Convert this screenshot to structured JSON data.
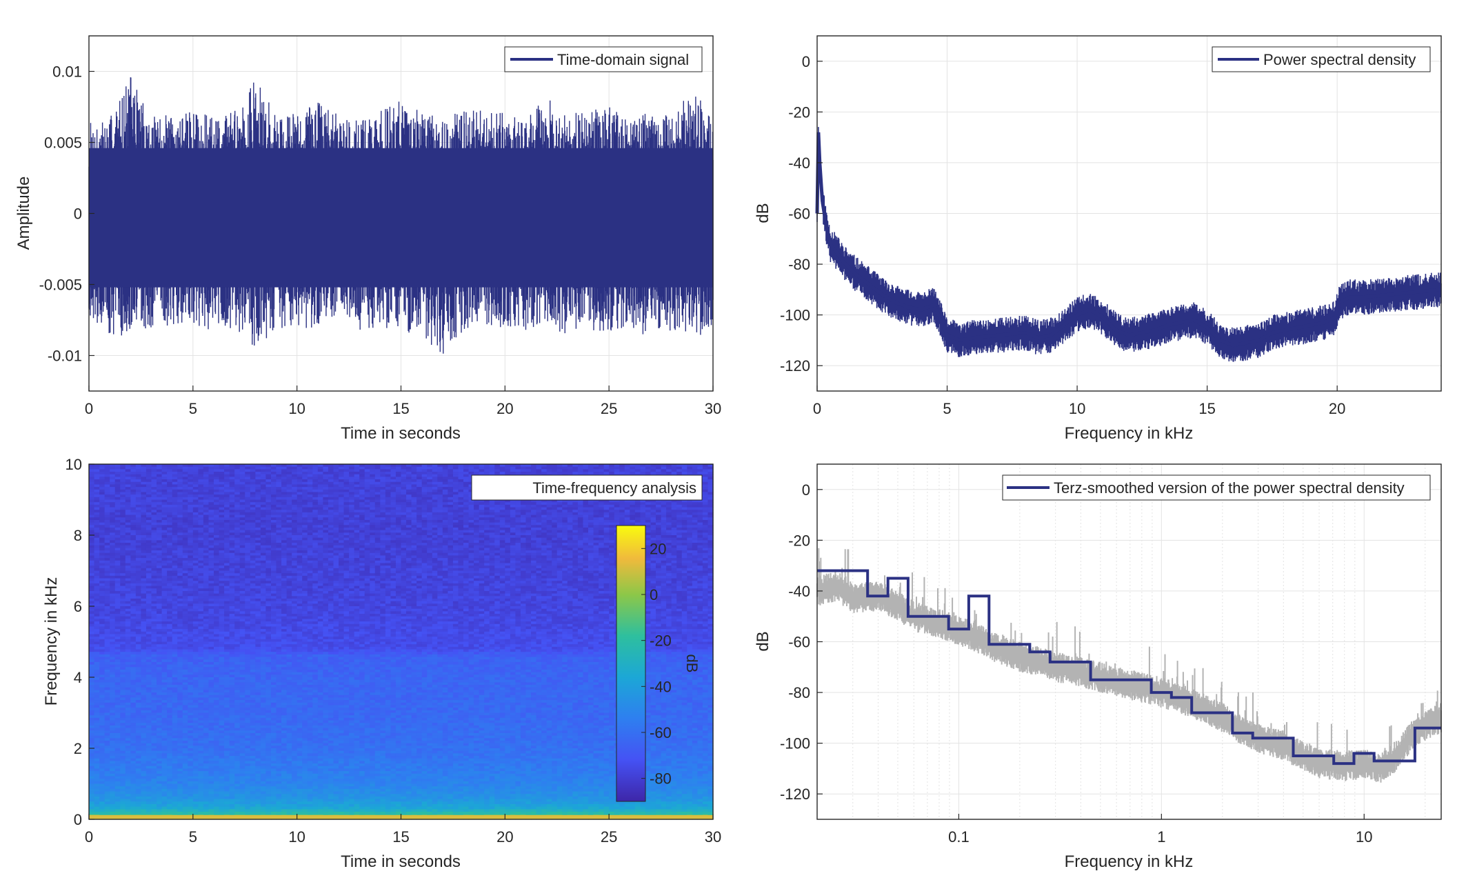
{
  "colors": {
    "series_navy": "#2b3183",
    "raw_gray": "#b3b3b3",
    "grid": "#e3e3e3",
    "axis": "#262626",
    "background": "#ffffff"
  },
  "chart_data": [
    {
      "id": "time-signal",
      "type": "line",
      "legend": [
        "Time-domain signal"
      ],
      "legend_position": "top-right",
      "xlabel": "Time in seconds",
      "ylabel": "Amplitude",
      "xlim": [
        0,
        30
      ],
      "ylim": [
        -0.0125,
        0.0125
      ],
      "grid": true,
      "xticks": [
        0,
        5,
        10,
        15,
        20,
        25,
        30
      ],
      "xtick_labels": [
        "0",
        "5",
        "10",
        "15",
        "20",
        "25",
        "30"
      ],
      "yticks": [
        0.01,
        0.005,
        0,
        -0.005,
        -0.01
      ],
      "ytick_labels": [
        "0.01",
        "0.005",
        "0",
        "-0.005",
        "-0.01"
      ],
      "envelope": {
        "note": "approximate upper/lower extent of the dense noise signal",
        "x": [
          0,
          1,
          2,
          3,
          4,
          5,
          6,
          7,
          8,
          9,
          10,
          11,
          12,
          13,
          14,
          15,
          16,
          17,
          18,
          19,
          20,
          21,
          22,
          23,
          24,
          25,
          26,
          27,
          28,
          29,
          30
        ],
        "upper": [
          0.0065,
          0.0068,
          0.0098,
          0.0068,
          0.007,
          0.0072,
          0.0068,
          0.0075,
          0.0095,
          0.007,
          0.0072,
          0.008,
          0.007,
          0.0068,
          0.0072,
          0.0085,
          0.007,
          0.0068,
          0.0072,
          0.0078,
          0.007,
          0.0068,
          0.0082,
          0.007,
          0.0072,
          0.0075,
          0.0068,
          0.0072,
          0.007,
          0.009,
          0.0065
        ],
        "lower": [
          -0.0072,
          -0.0085,
          -0.0088,
          -0.0082,
          -0.0078,
          -0.008,
          -0.0085,
          -0.008,
          -0.0095,
          -0.0082,
          -0.008,
          -0.0084,
          -0.008,
          -0.0082,
          -0.008,
          -0.0082,
          -0.0088,
          -0.0104,
          -0.0082,
          -0.008,
          -0.0084,
          -0.0082,
          -0.008,
          -0.0086,
          -0.0082,
          -0.0084,
          -0.008,
          -0.0088,
          -0.0082,
          -0.0084,
          -0.0092
        ]
      }
    },
    {
      "id": "psd",
      "type": "line",
      "legend": [
        "Power spectral density"
      ],
      "legend_position": "top-right",
      "xlabel": "Frequency in kHz",
      "ylabel": "dB",
      "xlim": [
        0,
        24
      ],
      "ylim": [
        -130,
        10
      ],
      "grid": true,
      "xticks": [
        0,
        5,
        10,
        15,
        20
      ],
      "xtick_labels": [
        "0",
        "5",
        "10",
        "15",
        "20"
      ],
      "yticks": [
        0,
        -20,
        -40,
        -60,
        -80,
        -100,
        -120
      ],
      "ytick_labels": [
        "0",
        "-20",
        "-40",
        "-60",
        "-80",
        "-100",
        "-120"
      ],
      "series": [
        {
          "x": [
            0,
            0.05,
            0.1,
            0.2,
            0.35,
            0.5,
            0.8,
            1.0,
            1.5,
            2.0,
            2.5,
            3.0,
            3.5,
            4.0,
            4.5,
            4.8,
            5.0,
            5.5,
            6.0,
            7.0,
            8.0,
            8.5,
            9.0,
            9.5,
            10.0,
            10.5,
            11.0,
            11.5,
            12.0,
            12.5,
            13.0,
            13.5,
            14.0,
            14.5,
            15.0,
            15.5,
            16.0,
            16.5,
            17.0,
            17.5,
            18.0,
            18.5,
            19.0,
            19.5,
            19.9,
            20.1,
            20.5,
            21.0,
            22.0,
            23.0,
            24.0
          ],
          "values": [
            -60,
            -28,
            -40,
            -55,
            -65,
            -72,
            -76,
            -79,
            -84,
            -88,
            -92,
            -95,
            -97,
            -98,
            -96,
            -103,
            -108,
            -110,
            -109,
            -108,
            -107,
            -109,
            -108,
            -104,
            -100,
            -98,
            -101,
            -106,
            -108,
            -107,
            -106,
            -104,
            -103,
            -102,
            -105,
            -110,
            -112,
            -111,
            -110,
            -107,
            -106,
            -105,
            -104,
            -103,
            -101,
            -95,
            -93,
            -93,
            -92,
            -91,
            -90
          ]
        }
      ]
    },
    {
      "id": "spectrogram",
      "type": "heatmap",
      "legend": [
        "Time-frequency analysis"
      ],
      "legend_position": "top-right",
      "xlabel": "Time in seconds",
      "ylabel": "Frequency in kHz",
      "xlim": [
        0,
        30
      ],
      "ylim": [
        0,
        10
      ],
      "xticks": [
        0,
        5,
        10,
        15,
        20,
        25,
        30
      ],
      "xtick_labels": [
        "0",
        "5",
        "10",
        "15",
        "20",
        "25",
        "30"
      ],
      "yticks": [
        0,
        2,
        4,
        6,
        8,
        10
      ],
      "ytick_labels": [
        "0",
        "2",
        "4",
        "6",
        "8",
        "10"
      ],
      "colorbar": {
        "label": "dB",
        "range": [
          -90,
          30
        ],
        "ticks": [
          20,
          0,
          -20,
          -40,
          -60,
          -80
        ],
        "tick_labels": [
          "20",
          "0",
          "-20",
          "-40",
          "-60",
          "-80"
        ],
        "colormap": "parula"
      },
      "level_profile": {
        "note": "approximate dB level vs frequency, roughly constant over time",
        "frequency_khz": [
          0,
          0.1,
          0.3,
          0.6,
          1.0,
          1.5,
          2.0,
          3.0,
          4.0,
          4.6,
          4.8,
          6.0,
          8.0,
          10.0
        ],
        "db": [
          5,
          -15,
          -35,
          -45,
          -52,
          -56,
          -60,
          -63,
          -64,
          -66,
          -74,
          -77,
          -79,
          -78
        ]
      }
    },
    {
      "id": "terz-psd",
      "type": "line",
      "legend": [
        "Terz-smoothed version of the power spectral density"
      ],
      "legend_position": "top-right",
      "xlabel": "Frequency in kHz",
      "ylabel": "dB",
      "xscale": "log",
      "xlim": [
        0.02,
        24
      ],
      "ylim": [
        -130,
        10
      ],
      "grid": true,
      "xticks": [
        0.1,
        1,
        10
      ],
      "xtick_labels": [
        "0.1",
        "1",
        "10"
      ],
      "yticks": [
        0,
        -20,
        -40,
        -60,
        -80,
        -100,
        -120
      ],
      "ytick_labels": [
        "0",
        "-20",
        "-40",
        "-60",
        "-80",
        "-100",
        "-120"
      ],
      "series": [
        {
          "style": "step",
          "edges_khz": [
            0.02,
            0.0355,
            0.0447,
            0.0562,
            0.0891,
            0.112,
            0.141,
            0.224,
            0.282,
            0.447,
            0.891,
            1.12,
            1.41,
            2.24,
            2.82,
            4.47,
            7.08,
            8.91,
            11.2,
            17.8,
            24
          ],
          "values": [
            -32,
            -42,
            -35,
            -50,
            -55,
            -42,
            -61,
            -64,
            -68,
            -75,
            -80,
            -82,
            -88,
            -96,
            -98,
            -105,
            -108,
            -104,
            -107,
            -94
          ]
        },
        {
          "note": "raw spectrum underneath",
          "x": [
            0.02,
            0.025,
            0.03,
            0.04,
            0.05,
            0.06,
            0.08,
            0.1,
            0.12,
            0.15,
            0.2,
            0.3,
            0.4,
            0.5,
            0.7,
            1.0,
            1.3,
            1.6,
            2.0,
            2.5,
            3.0,
            4.0,
            5.0,
            6.0,
            8.0,
            10.0,
            12.0,
            14.0,
            16.0,
            18.0,
            20.0,
            24.0
          ],
          "values": [
            -40,
            -38,
            -43,
            -42,
            -46,
            -50,
            -53,
            -56,
            -58,
            -62,
            -66,
            -70,
            -72,
            -74,
            -77,
            -80,
            -83,
            -86,
            -90,
            -95,
            -98,
            -101,
            -105,
            -108,
            -109,
            -108,
            -110,
            -106,
            -100,
            -95,
            -93,
            -90
          ]
        }
      ]
    }
  ]
}
